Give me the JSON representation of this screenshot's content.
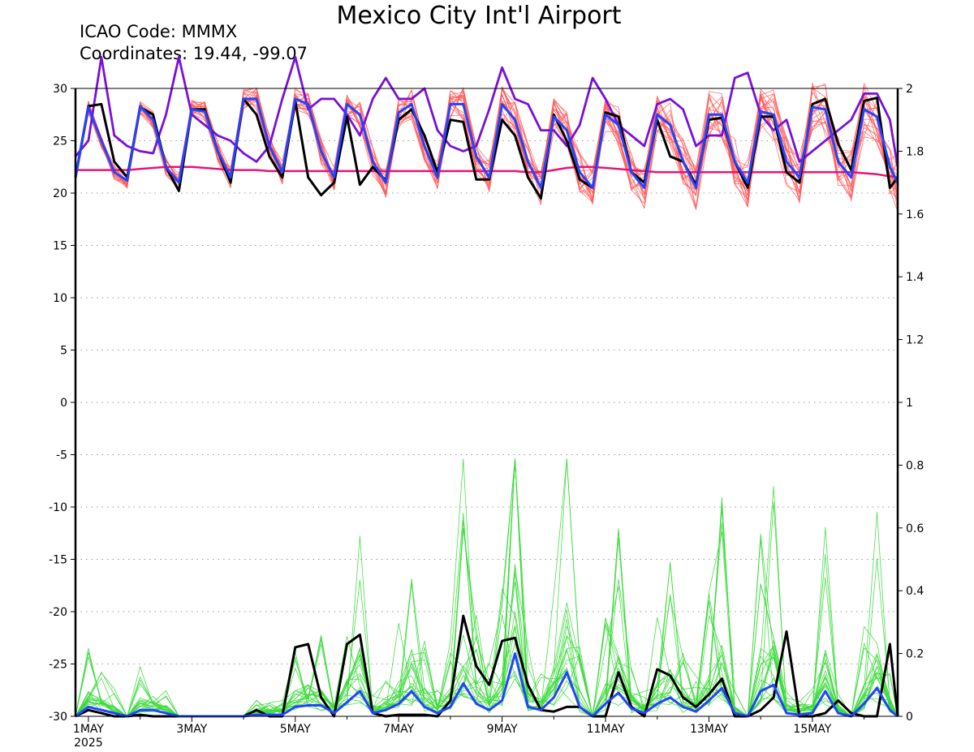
{
  "header": {
    "title": "Mexico City Int'l Airport",
    "icao_line": "ICAO Code: MMMX",
    "coord_line": "Coordinates: 19.44, -99.07"
  },
  "colors": {
    "ens_temp": "#ff5a5a",
    "ens_precip": "#3ad93a",
    "control": "#000000",
    "mean": "#2244ff",
    "highres": "#7a10d8",
    "climo": "#e8137a",
    "grid": "#9a9a9a"
  },
  "chart_data": {
    "type": "line",
    "title": "Mexico City Int'l Airport",
    "x_start_day": 0,
    "x_range": [
      0.75,
      16.65
    ],
    "x_ticks": [
      {
        "label": "1MAY",
        "day": 1
      },
      {
        "label": "3MAY",
        "day": 3
      },
      {
        "label": "5MAY",
        "day": 5
      },
      {
        "label": "7MAY",
        "day": 7
      },
      {
        "label": "9MAY",
        "day": 9
      },
      {
        "label": "11MAY",
        "day": 11
      },
      {
        "label": "13MAY",
        "day": 13
      },
      {
        "label": "15MAY",
        "day": 15
      }
    ],
    "x_year_label": "2025",
    "left_axis": {
      "ylim": [
        -30,
        30
      ],
      "ticks": [
        30,
        25,
        20,
        15,
        10,
        5,
        0,
        -5,
        -10,
        -15,
        -20,
        -25,
        -30
      ]
    },
    "right_axis": {
      "ylim": [
        0,
        2
      ],
      "ticks": [
        2,
        1.8,
        1.6,
        1.4,
        1.2,
        1,
        0.8,
        0.6,
        0.4,
        0.2,
        0
      ]
    },
    "grid": "dotted horizontal",
    "temperature": {
      "x": [
        0.75,
        1.0,
        1.25,
        1.5,
        1.75,
        2.0,
        2.25,
        2.5,
        2.75,
        3.0,
        3.25,
        3.5,
        3.75,
        4.0,
        4.25,
        4.5,
        4.75,
        5.0,
        5.25,
        5.5,
        5.75,
        6.0,
        6.25,
        6.5,
        6.75,
        7.0,
        7.25,
        7.5,
        7.75,
        8.0,
        8.25,
        8.5,
        8.75,
        9.0,
        9.25,
        9.5,
        9.75,
        10.0,
        10.25,
        10.5,
        10.75,
        11.0,
        11.25,
        11.5,
        11.75,
        12.0,
        12.25,
        12.5,
        12.75,
        13.0,
        13.25,
        13.5,
        13.75,
        14.0,
        14.25,
        14.5,
        14.75,
        15.0,
        15.25,
        15.5,
        15.75,
        16.0,
        16.25,
        16.5,
        16.65
      ],
      "control": [
        21.5,
        28.3,
        28.5,
        23.0,
        21.5,
        28.2,
        27.5,
        22.5,
        20.2,
        28.0,
        28.0,
        24.0,
        21.0,
        29.0,
        27.5,
        23.5,
        21.5,
        28.8,
        21.5,
        19.8,
        21.0,
        27.3,
        20.8,
        22.5,
        21.2,
        27.0,
        28.0,
        25.5,
        22.0,
        27.0,
        26.8,
        21.3,
        21.3,
        27.0,
        25.5,
        21.5,
        19.5,
        27.5,
        25.0,
        21.3,
        20.5,
        27.7,
        27.3,
        22.0,
        21.0,
        27.0,
        23.5,
        23.0,
        20.8,
        27.0,
        27.2,
        23.0,
        20.5,
        27.3,
        27.3,
        22.0,
        21.0,
        28.5,
        29.0,
        24.7,
        22.2,
        28.8,
        29.1,
        20.5,
        21.5
      ],
      "mean": [
        21.5,
        28.2,
        25.0,
        22.0,
        21.2,
        28.3,
        27.0,
        22.5,
        21.0,
        28.0,
        27.8,
        24.0,
        21.5,
        29.0,
        29.0,
        24.5,
        22.0,
        29.0,
        28.5,
        24.0,
        21.5,
        28.5,
        27.5,
        23.0,
        21.0,
        27.7,
        28.5,
        24.5,
        21.5,
        28.5,
        28.5,
        23.5,
        21.5,
        28.5,
        27.0,
        23.0,
        20.5,
        27.3,
        26.0,
        22.0,
        20.5,
        27.5,
        26.5,
        22.0,
        20.5,
        27.5,
        26.5,
        23.0,
        20.5,
        27.5,
        27.5,
        23.0,
        21.0,
        27.8,
        27.5,
        23.0,
        21.5,
        28.2,
        28.0,
        23.0,
        21.5,
        28.0,
        27.3,
        22.5,
        21.0
      ],
      "highres": [
        23.5,
        25.0,
        33.0,
        25.5,
        24.5,
        24.0,
        23.8,
        27.5,
        33.0,
        27.5,
        26.5,
        25.5,
        25.0,
        23.8,
        23.0,
        24.5,
        29.0,
        33.0,
        28.0,
        29.0,
        29.0,
        27.5,
        25.5,
        29.0,
        31.0,
        29.0,
        29.0,
        30.0,
        26.0,
        24.5,
        24.0,
        24.5,
        28.0,
        32.0,
        29.0,
        28.5,
        26.0,
        26.0,
        24.5,
        26.5,
        31.0,
        29.0,
        26.5,
        25.5,
        24.5,
        28.5,
        29.0,
        28.0,
        24.5,
        25.5,
        25.5,
        31.0,
        31.5,
        27.5,
        26.0,
        27.0,
        23.0,
        24.0,
        25.0,
        26.0,
        27.0,
        29.5,
        29.5,
        27.0,
        22.5
      ],
      "climo": [
        22.2,
        22.2,
        22.2,
        22.2,
        22.2,
        22.3,
        22.4,
        22.5,
        22.5,
        22.5,
        22.4,
        22.3,
        22.2,
        22.2,
        22.2,
        22.1,
        22.1,
        22.1,
        22.1,
        22.1,
        22.1,
        22.1,
        22.1,
        22.1,
        22.1,
        22.1,
        22.1,
        22.1,
        22.1,
        22.1,
        22.1,
        22.1,
        22.1,
        22.1,
        22.1,
        22.0,
        22.0,
        22.2,
        22.4,
        22.5,
        22.5,
        22.4,
        22.3,
        22.2,
        22.1,
        22.0,
        22.0,
        22.0,
        22.0,
        22.0,
        22.0,
        22.0,
        22.0,
        22.0,
        22.0,
        22.0,
        22.0,
        22.0,
        22.0,
        22.0,
        22.0,
        21.9,
        21.8,
        21.6,
        21.5
      ]
    },
    "precipitation": {
      "x": [
        0.75,
        1.0,
        1.25,
        1.5,
        1.75,
        2.0,
        2.25,
        2.5,
        2.75,
        3.0,
        3.25,
        3.5,
        3.75,
        4.0,
        4.25,
        4.5,
        4.75,
        5.0,
        5.25,
        5.5,
        5.75,
        6.0,
        6.25,
        6.5,
        6.75,
        7.0,
        7.25,
        7.5,
        7.75,
        8.0,
        8.25,
        8.5,
        8.75,
        9.0,
        9.25,
        9.5,
        9.75,
        10.0,
        10.25,
        10.5,
        10.75,
        11.0,
        11.25,
        11.5,
        11.75,
        12.0,
        12.25,
        12.5,
        12.75,
        13.0,
        13.25,
        13.5,
        13.75,
        14.0,
        14.25,
        14.5,
        14.75,
        15.0,
        15.25,
        15.5,
        15.75,
        16.0,
        16.25,
        16.5,
        16.65
      ],
      "control": [
        0,
        0.02,
        0.01,
        0,
        0,
        0.005,
        0,
        0,
        0,
        0,
        0,
        0,
        0,
        0,
        0.02,
        0,
        0,
        0.22,
        0.23,
        0.06,
        0,
        0.23,
        0.26,
        0.01,
        0,
        0.005,
        0.005,
        0.005,
        0,
        0.05,
        0.32,
        0.16,
        0.1,
        0.24,
        0.25,
        0.1,
        0.02,
        0.015,
        0.03,
        0.03,
        0,
        0,
        0.14,
        0.03,
        0,
        0.15,
        0.13,
        0.06,
        0.03,
        0.07,
        0.12,
        0,
        0,
        0.02,
        0.06,
        0.27,
        0,
        0,
        0.01,
        0.05,
        0.01,
        0,
        0,
        0.23,
        0
      ],
      "mean": [
        0,
        0.03,
        0.02,
        0.01,
        0,
        0.02,
        0.02,
        0.01,
        0,
        0,
        0,
        0,
        0,
        0,
        0.005,
        0.005,
        0.005,
        0.03,
        0.035,
        0.035,
        0.01,
        0.045,
        0.08,
        0.01,
        0.02,
        0.04,
        0.08,
        0.03,
        0.01,
        0.03,
        0.105,
        0.04,
        0.02,
        0.05,
        0.2,
        0.03,
        0.02,
        0.06,
        0.14,
        0.03,
        0,
        0.04,
        0.075,
        0.025,
        0.01,
        0.04,
        0.06,
        0.03,
        0.015,
        0.05,
        0.09,
        0.01,
        0,
        0.08,
        0.1,
        0.01,
        0.005,
        0.01,
        0.08,
        0.01,
        0,
        0.04,
        0.09,
        0.02,
        0
      ]
    }
  }
}
